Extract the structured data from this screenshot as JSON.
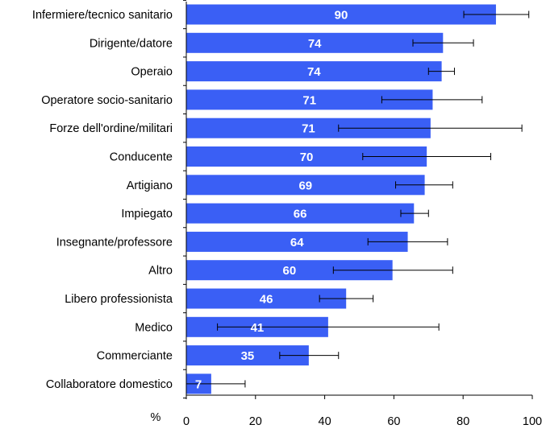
{
  "chart_data": {
    "type": "bar",
    "orientation": "horizontal",
    "categories": [
      "Infermiere/tecnico sanitario",
      "Dirigente/datore",
      "Operaio",
      "Operatore socio-sanitario",
      "Forze dell'ordine/militari",
      "Conducente",
      "Artigiano",
      "Impiegato",
      "Insegnante/professore",
      "Altro",
      "Libero professionista",
      "Medico",
      "Commerciante",
      "Collaboratore domestico"
    ],
    "values": [
      89.5,
      74.2,
      73.8,
      71.2,
      70.6,
      69.5,
      68.9,
      65.8,
      64.0,
      59.6,
      46.2,
      41.0,
      35.4,
      7.2
    ],
    "value_labels": [
      "90",
      "74",
      "74",
      "71",
      "71",
      "70",
      "69",
      "66",
      "64",
      "60",
      "46",
      "41",
      "35",
      "7"
    ],
    "error_low": [
      80.2,
      65.5,
      70.0,
      56.5,
      44.0,
      51.0,
      60.5,
      62.0,
      52.5,
      42.5,
      38.5,
      9.0,
      27.0,
      0.0
    ],
    "error_high": [
      99.0,
      83.0,
      77.5,
      85.5,
      97.0,
      88.0,
      77.0,
      70.0,
      75.5,
      77.0,
      54.0,
      73.0,
      44.0,
      17.0
    ],
    "xlabel": "%",
    "xlim": [
      0,
      100
    ],
    "xticks": [
      "0",
      "20",
      "40",
      "60",
      "80",
      "100"
    ],
    "bar_color": "#3a5ff5",
    "label_color": "#ffffff",
    "grid": false,
    "legend": "none"
  }
}
